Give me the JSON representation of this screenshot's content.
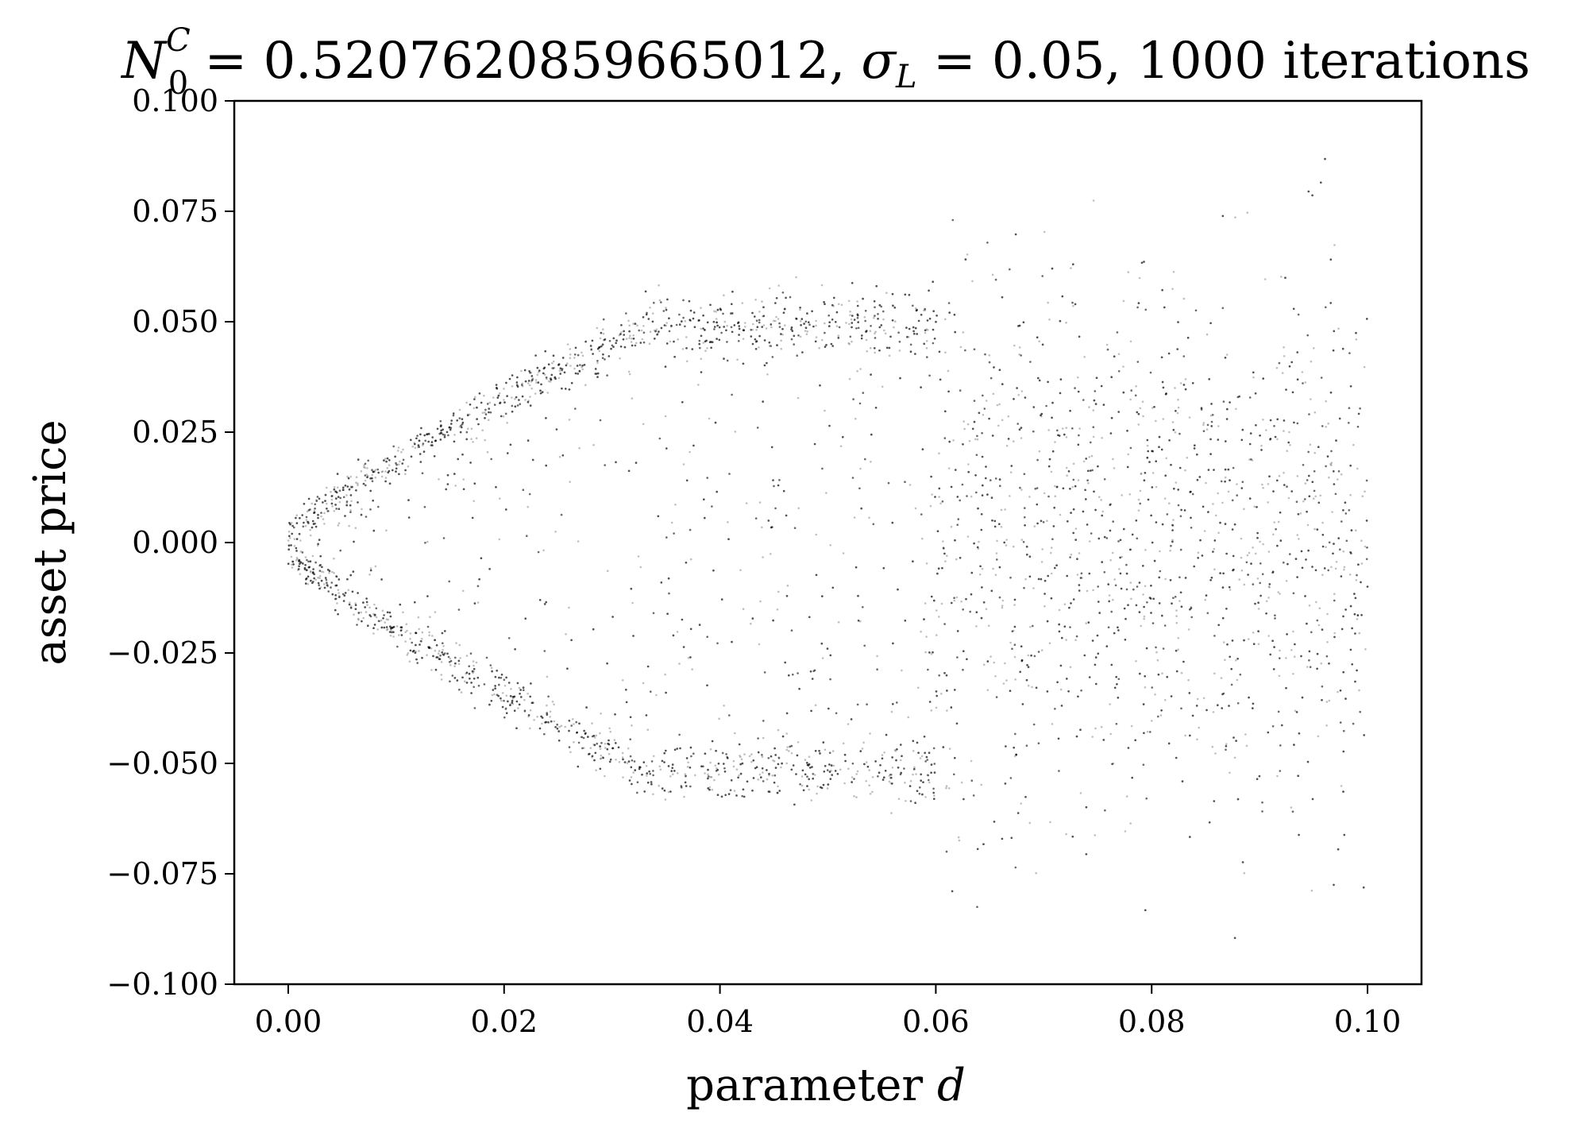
{
  "chart_data": {
    "type": "scatter",
    "title": {
      "n_symbol": "N",
      "n_sup": "C",
      "n_sub": "0",
      "n_value": " = 0.5207620859665012,",
      "sigma_symbol": "σ",
      "sigma_sub": "L",
      "sigma_value": " = 0.05, 1000 iterations"
    },
    "xlabel": {
      "text": "parameter ",
      "var": "d"
    },
    "ylabel": "asset price",
    "xlim": [
      -0.005,
      0.105
    ],
    "ylim": [
      -0.1,
      0.1
    ],
    "x_ticks": [
      0.0,
      0.02,
      0.04,
      0.06,
      0.08,
      0.1
    ],
    "x_tick_labels": [
      "0.00",
      "0.02",
      "0.04",
      "0.06",
      "0.08",
      "0.10"
    ],
    "y_ticks": [
      -0.1,
      -0.075,
      -0.05,
      -0.025,
      0.0,
      0.025,
      0.05,
      0.075,
      0.1
    ],
    "y_tick_labels": [
      "−0.100",
      "−0.075",
      "−0.050",
      "−0.025",
      "0.000",
      "0.025",
      "0.050",
      "0.075",
      "0.100"
    ],
    "grid": false,
    "marker_color": "#000000",
    "marker_alpha": 0.25,
    "x_range": [
      0.0,
      0.1
    ],
    "series": [
      {
        "description_points": [
          {
            "d": 0.0,
            "price": 0.0
          },
          {
            "d": 0.01,
            "upper": 0.02,
            "lower": -0.02
          },
          {
            "d": 0.02,
            "upper": 0.03,
            "lower": -0.03
          },
          {
            "d": 0.03,
            "upper": 0.04,
            "lower": -0.04
          },
          {
            "d": 0.04,
            "upper": 0.045,
            "lower": -0.05
          },
          {
            "d": 0.05,
            "upper": 0.05,
            "lower": -0.055
          },
          {
            "d": 0.06,
            "upper": 0.04,
            "lower": -0.04
          },
          {
            "d": 0.07,
            "upper": 0.03,
            "lower": -0.03
          },
          {
            "d": 0.1,
            "upper": 0.02,
            "lower": -0.02
          }
        ]
      }
    ]
  }
}
